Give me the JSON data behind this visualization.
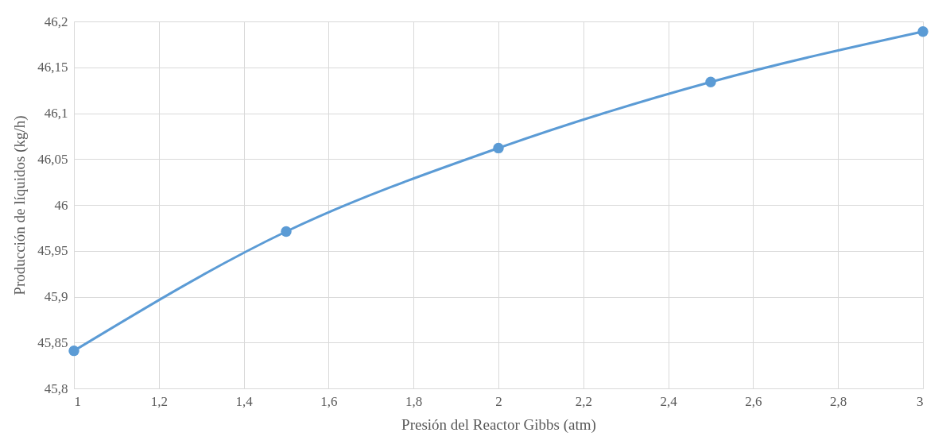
{
  "chart_data": {
    "type": "line",
    "xlabel": "Presión del Reactor Gibbs (atm)",
    "ylabel": "Producción de líquidos (kg/h)",
    "x": [
      1,
      1.5,
      2,
      2.5,
      3
    ],
    "series": [
      {
        "color": "#5b9bd5",
        "values": [
          45.841,
          45.971,
          46.062,
          46.134,
          46.189
        ]
      }
    ],
    "xlim": [
      1,
      3
    ],
    "xticks": [
      1,
      {
        "value": 1.2,
        "label": "1,2"
      },
      {
        "value": 1.4,
        "label": "1,4"
      },
      {
        "value": 1.6,
        "label": "1,6"
      },
      {
        "value": 1.8,
        "label": "1,8"
      },
      2,
      {
        "value": 2.2,
        "label": "2,2"
      },
      {
        "value": 2.4,
        "label": "2,4"
      },
      {
        "value": 2.6,
        "label": "2,6"
      },
      {
        "value": 2.8,
        "label": "2,8"
      },
      3
    ],
    "ylim": [
      45.8,
      46.2
    ],
    "yticks": [
      {
        "value": 45.8,
        "label": "45,8"
      },
      {
        "value": 45.85,
        "label": "45,85"
      },
      {
        "value": 45.9,
        "label": "45,9"
      },
      {
        "value": 45.95,
        "label": "45,95"
      },
      {
        "value": 46,
        "label": "46"
      },
      {
        "value": 46.05,
        "label": "46,05"
      },
      {
        "value": 46.1,
        "label": "46,1"
      },
      {
        "value": 46.15,
        "label": "46,15"
      },
      {
        "value": 46.2,
        "label": "46,2"
      }
    ],
    "grid": true,
    "marker": "circle",
    "line_style": "solid"
  }
}
